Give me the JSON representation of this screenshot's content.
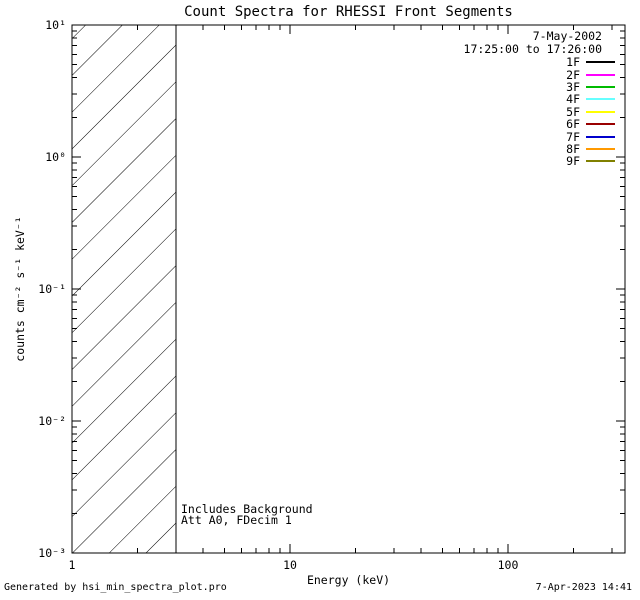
{
  "title": "Count Spectra for RHESSI Front Segments",
  "annotations": {
    "includes_background": "Includes Background",
    "attenuator_state": "Att A0, FDecim 1"
  },
  "legend": {
    "date": "7-May-2002",
    "time_range": "17:25:00 to 17:26:00",
    "entries": [
      {
        "label": "1F",
        "color": "#000000"
      },
      {
        "label": "2F",
        "color": "#ff00ff"
      },
      {
        "label": "3F",
        "color": "#00bb00"
      },
      {
        "label": "4F",
        "color": "#66ffff"
      },
      {
        "label": "5F",
        "color": "#ffff00"
      },
      {
        "label": "6F",
        "color": "#990000"
      },
      {
        "label": "7F",
        "color": "#0000cc"
      },
      {
        "label": "8F",
        "color": "#ff9900"
      },
      {
        "label": "9F",
        "color": "#808000"
      }
    ]
  },
  "footer": {
    "left": "Generated by hsi_min_spectra_plot.pro",
    "right": "7-Apr-2023 14:41"
  },
  "chart_data": {
    "type": "line",
    "title": "Count Spectra for RHESSI Front Segments",
    "xlabel": "Energy (keV)",
    "ylabel": "counts cm⁻² s⁻¹ keV⁻¹",
    "x_scale": "log",
    "y_scale": "log",
    "xlim": [
      1,
      347
    ],
    "ylim": [
      0.001,
      10
    ],
    "xticks": [
      {
        "value": 1,
        "label": "1"
      },
      {
        "value": 10,
        "label": "10"
      },
      {
        "value": 100,
        "label": "100"
      }
    ],
    "yticks": [
      {
        "value": 10,
        "label": "10¹"
      },
      {
        "value": 1,
        "label": "10⁰"
      },
      {
        "value": 0.1,
        "label": "10⁻¹"
      },
      {
        "value": 0.01,
        "label": "10⁻²"
      },
      {
        "value": 0.001,
        "label": "10⁻³"
      }
    ],
    "series": [],
    "hatched_region": {
      "x_range_keV": [
        1,
        3
      ],
      "style": "diagonal-hatch",
      "note": "no spectra curves are drawn in the visible plot"
    },
    "grid": false,
    "legend_position": "inside-top-right"
  }
}
